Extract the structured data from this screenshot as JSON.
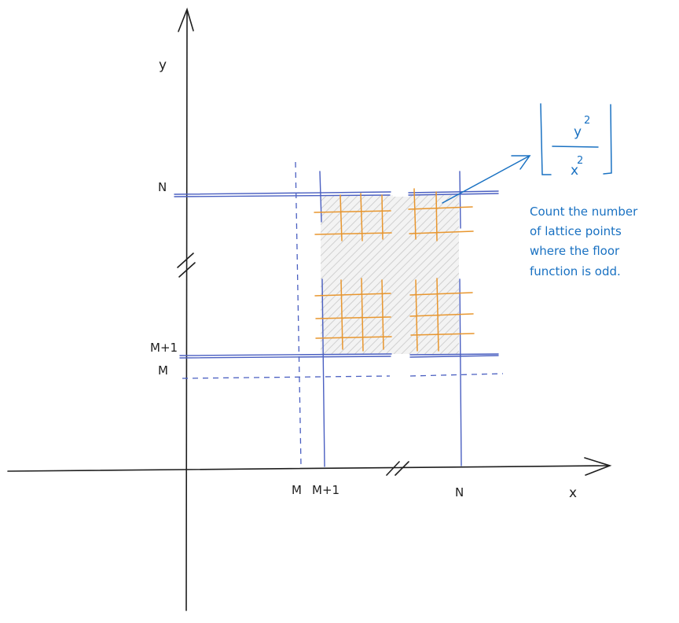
{
  "axes": {
    "x_label": "x",
    "y_label": "y"
  },
  "ticks": {
    "x": [
      "M",
      "M+1",
      "N"
    ],
    "y": [
      "N",
      "M+1",
      "M"
    ]
  },
  "floor_expression": {
    "numerator": "y",
    "numerator_exp": "2",
    "denominator": "x",
    "denominator_exp": "2"
  },
  "note_lines": [
    "Count the number",
    "of lattice points",
    "where the floor",
    "function is odd."
  ],
  "colors": {
    "ink": "#1e1e1e",
    "blue": "#4a5fc1",
    "orange": "#e8962e",
    "annotation": "#1971c2",
    "shade": "#dcdcdc"
  }
}
